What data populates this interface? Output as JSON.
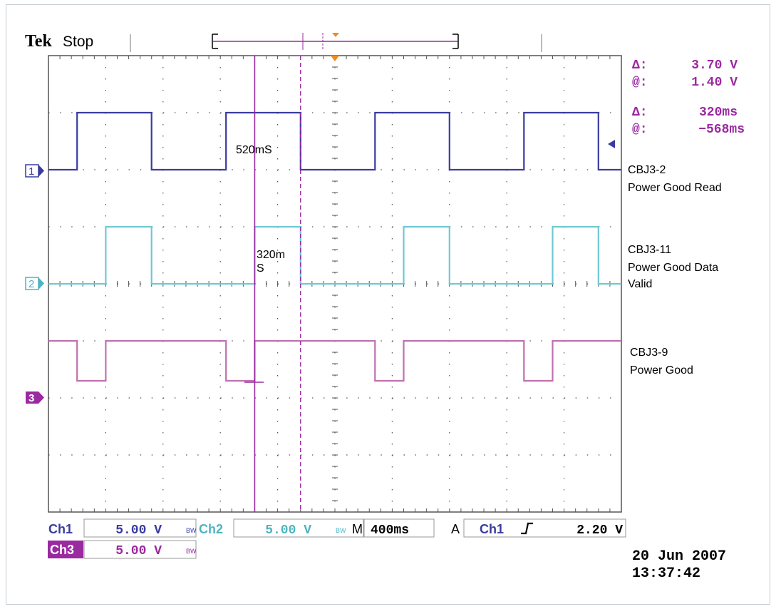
{
  "header": {
    "brand": "Tek",
    "status": "Stop"
  },
  "readouts": {
    "cursor1_delta_symbol": "Δ:",
    "cursor1_delta": "3.70 V",
    "cursor1_at_symbol": "@:",
    "cursor1_at": "1.40 V",
    "cursor2_delta_symbol": "Δ:",
    "cursor2_delta": "320ms",
    "cursor2_at_symbol": "@:",
    "cursor2_at": "−568ms"
  },
  "annotations": {
    "a1": "520mS",
    "a2_line1": "320m",
    "a2_line2": "S"
  },
  "channel_markers": {
    "ch1": "1",
    "ch2": "2",
    "ch3": "3"
  },
  "trace_labels": {
    "ch1_line1": "CBJ3-2",
    "ch1_line2": "Power Good Read",
    "ch2_line1": "CBJ3-11",
    "ch2_line2": "Power Good Data",
    "ch2_line3": "Valid",
    "ch3_line1": "CBJ3-9",
    "ch3_line2": "Power Good"
  },
  "status_bar": {
    "ch1_label": "Ch1",
    "ch1_scale": "5.00 V",
    "ch1_bw": "BW",
    "ch2_label": "Ch2",
    "ch2_scale": "5.00 V",
    "ch2_bw": "BW",
    "timebase_label": "M",
    "timebase": "400ms",
    "trigger_mode": "A",
    "trigger_source": "Ch1",
    "trigger_level": "2.20 V",
    "ch3_label": "Ch3",
    "ch3_scale": "5.00 V",
    "ch3_bw": "BW"
  },
  "datetime": {
    "date": "20 Jun 2007",
    "time": "13:37:42"
  },
  "colors": {
    "ch1": "#3a3ca0",
    "ch2": "#6fc8d4",
    "ch3": "#c070b0",
    "cursor": "#9a2aa0",
    "trigger": "#f08a20"
  },
  "chart_data": {
    "type": "line",
    "x_divisions": 10,
    "y_divisions": 8,
    "timebase": "400ms",
    "grid": true,
    "series": [
      {
        "name": "CBJ3-2",
        "channel": 1,
        "low_div": 6.0,
        "high_div": 7.0,
        "transitions": [
          0.5,
          1.8,
          3.1,
          4.4,
          5.7,
          7.0,
          8.3,
          9.6
        ],
        "start_level": "low"
      },
      {
        "name": "CBJ3-11",
        "channel": 2,
        "low_div": 4.0,
        "high_div": 5.0,
        "transitions": [
          1.0,
          1.8,
          3.6,
          4.4,
          6.2,
          7.0,
          8.8,
          9.6
        ],
        "start_level": "low"
      },
      {
        "name": "CBJ3-9",
        "channel": 3,
        "low_div": 2.3,
        "high_div": 3.0,
        "transitions": [
          0.5,
          1.0,
          3.1,
          3.6,
          5.7,
          6.2,
          8.3,
          8.8
        ],
        "start_level": "high"
      }
    ],
    "cursors": {
      "solid_x_div": 3.6,
      "dashed_x_div": 4.4
    },
    "trigger_x_div": 5.0
  }
}
